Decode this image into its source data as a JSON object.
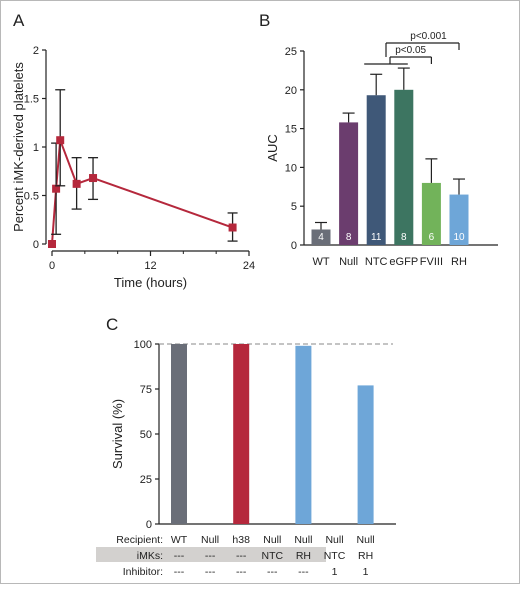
{
  "colors": {
    "line_series": "#b5283c",
    "wt": "#6a6e78",
    "null": "#6b3d6e",
    "ntc": "#3f5878",
    "egfp": "#3d7561",
    "fviii": "#72b35a",
    "rh": "#6ea6d8",
    "h38": "#b5283c",
    "axis": "#222222",
    "dashed": "#888888",
    "table_bg": "#d3d1cf"
  },
  "chart_data": [
    {
      "panel": "A",
      "type": "line",
      "xlabel": "Time (hours)",
      "ylabel": "Percent iMK-derived platelets",
      "xlim": [
        0,
        24
      ],
      "ylim": [
        0,
        2
      ],
      "xticks": [
        "0",
        "12",
        "24"
      ],
      "xtick_values": [
        0,
        12,
        24
      ],
      "xminor": [
        4,
        8,
        16,
        20
      ],
      "yticks": [
        "0",
        "0.5",
        "1",
        "1.5",
        "2"
      ],
      "ytick_values": [
        0,
        0.5,
        1,
        1.5,
        2
      ],
      "x": [
        0,
        0.5,
        1,
        3,
        5,
        22
      ],
      "y": [
        0,
        0.57,
        1.07,
        0.62,
        0.68,
        0.17
      ],
      "err_low": [
        0,
        0.47,
        0.47,
        0.26,
        0.22,
        0.14
      ],
      "err_high": [
        0,
        0.47,
        0.52,
        0.27,
        0.21,
        0.15
      ]
    },
    {
      "panel": "B",
      "type": "bar",
      "ylabel": "AUC",
      "ylim": [
        0,
        25
      ],
      "yticks": [
        "0",
        "5",
        "10",
        "15",
        "20",
        "25"
      ],
      "ytick_values": [
        0,
        5,
        10,
        15,
        20,
        25
      ],
      "categories": [
        "WT",
        "Null",
        "NTC",
        "eGFP",
        "FVIII",
        "RH"
      ],
      "values": [
        2.0,
        15.8,
        19.3,
        20.0,
        8.0,
        6.5
      ],
      "errors": [
        0.9,
        1.2,
        2.7,
        2.8,
        3.1,
        2.0
      ],
      "n_labels": [
        "4",
        "8",
        "11",
        "8",
        "6",
        "10"
      ],
      "bar_colors": [
        "#6a6e78",
        "#6b3d6e",
        "#3f5878",
        "#3d7561",
        "#72b35a",
        "#6ea6d8"
      ],
      "annotations": [
        "p<0.001",
        "p<0.05"
      ]
    },
    {
      "panel": "C",
      "type": "bar",
      "ylabel": "Survival (%)",
      "ylim": [
        0,
        100
      ],
      "yticks": [
        "0",
        "25",
        "50",
        "75",
        "100"
      ],
      "ytick_values": [
        0,
        25,
        50,
        75,
        100
      ],
      "reference_line": 100,
      "values": [
        100,
        0,
        100,
        0,
        99,
        0,
        77
      ],
      "bar_colors": [
        "#6a6e78",
        "#6b3d6e",
        "#b5283c",
        "#3f5878",
        "#6ea6d8",
        "#3f5878",
        "#6ea6d8"
      ],
      "table": {
        "row_labels": [
          "Recipient:",
          "iMKs:",
          "Inhibitor:"
        ],
        "recipient": [
          "WT",
          "Null",
          "h38",
          "Null",
          "Null",
          "Null",
          "Null"
        ],
        "imks": [
          "---",
          "---",
          "---",
          "NTC",
          "RH",
          "NTC",
          "RH"
        ],
        "inhibitor": [
          "---",
          "---",
          "---",
          "---",
          "---",
          "1",
          "1"
        ]
      }
    }
  ],
  "panel_labels": [
    "A",
    "B",
    "C"
  ]
}
